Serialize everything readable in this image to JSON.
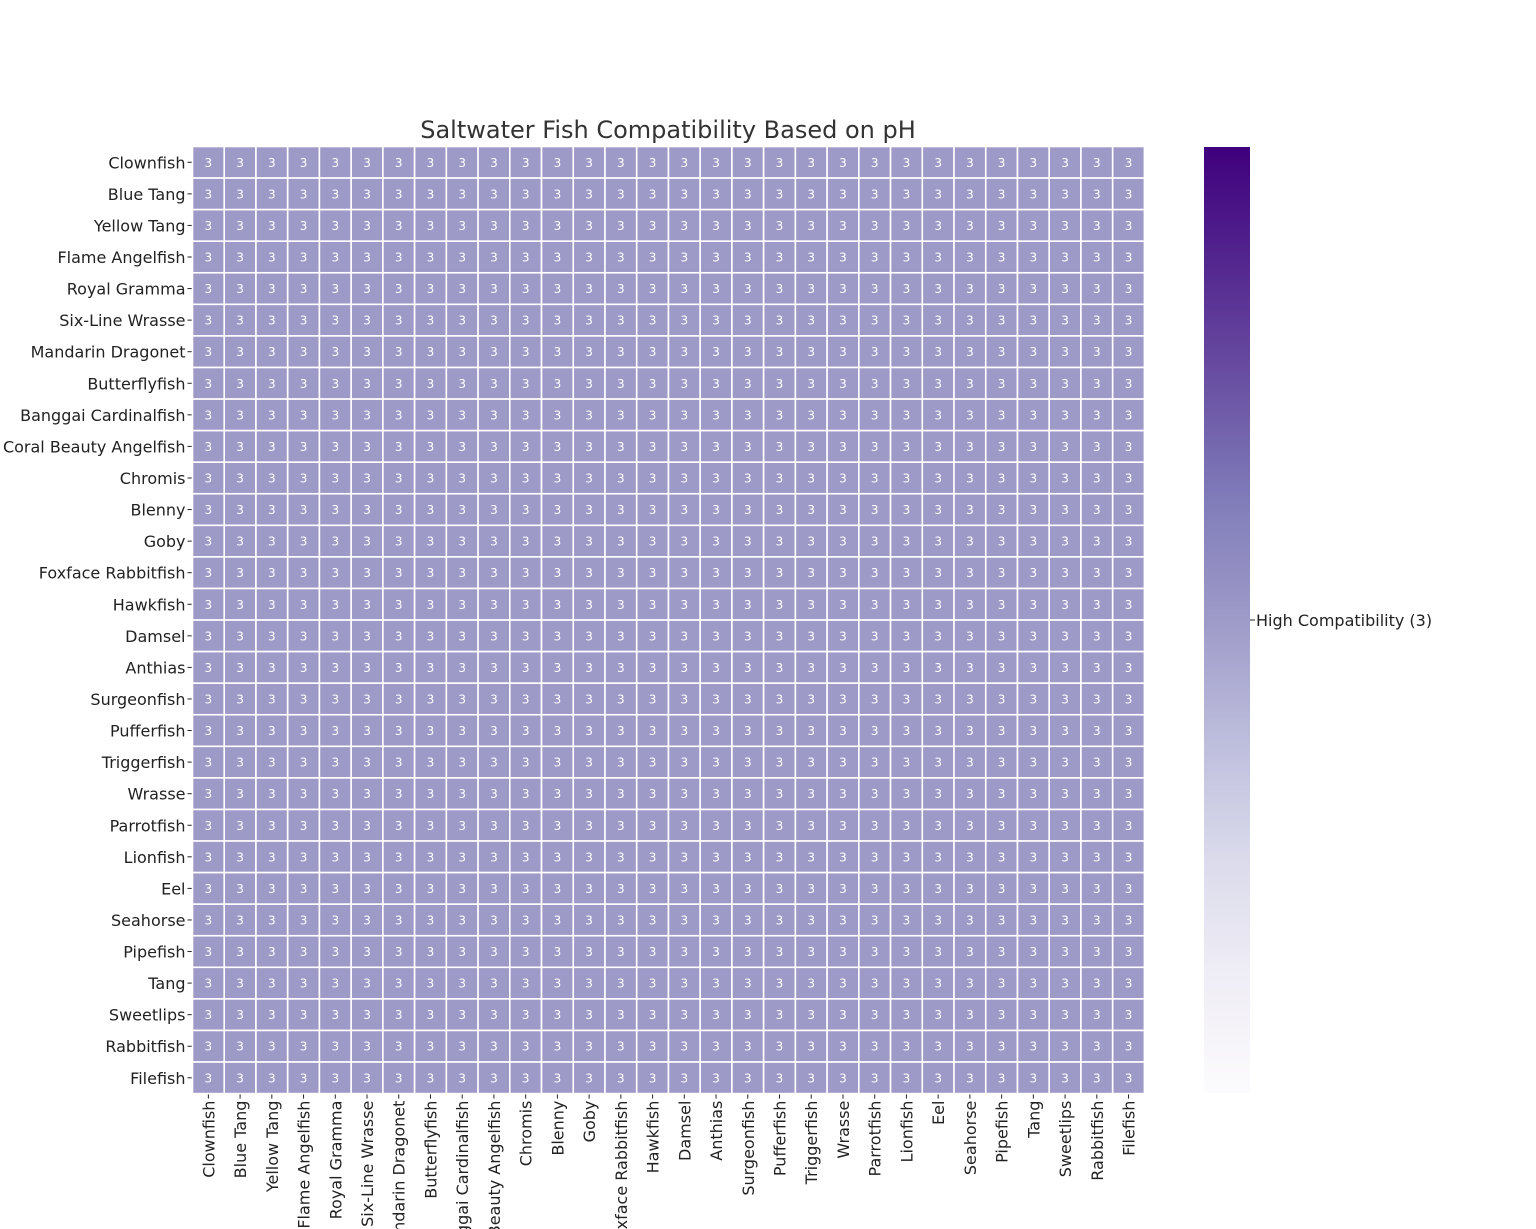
{
  "chart_data": {
    "type": "heatmap",
    "title": "Saltwater Fish Compatibility Based on pH",
    "rows": [
      "Clownfish",
      "Blue Tang",
      "Yellow Tang",
      "Flame Angelfish",
      "Royal Gramma",
      "Six-Line Wrasse",
      "Mandarin Dragonet",
      "Butterflyfish",
      "Banggai Cardinalfish",
      "Coral Beauty Angelfish",
      "Chromis",
      "Blenny",
      "Goby",
      "Foxface Rabbitfish",
      "Hawkfish",
      "Damsel",
      "Anthias",
      "Surgeonfish",
      "Pufferfish",
      "Triggerfish",
      "Wrasse",
      "Parrotfish",
      "Lionfish",
      "Eel",
      "Seahorse",
      "Pipefish",
      "Tang",
      "Sweetlips",
      "Rabbitfish",
      "Filefish"
    ],
    "columns": [
      "Clownfish",
      "Blue Tang",
      "Yellow Tang",
      "Flame Angelfish",
      "Royal Gramma",
      "Six-Line Wrasse",
      "Mandarin Dragonet",
      "Butterflyfish",
      "Banggai Cardinalfish",
      "Coral Beauty Angelfish",
      "Chromis",
      "Blenny",
      "Goby",
      "Foxface Rabbitfish",
      "Hawkfish",
      "Damsel",
      "Anthias",
      "Surgeonfish",
      "Pufferfish",
      "Triggerfish",
      "Wrasse",
      "Parrotfish",
      "Lionfish",
      "Eel",
      "Seahorse",
      "Pipefish",
      "Tang",
      "Sweetlips",
      "Rabbitfish",
      "Filefish"
    ],
    "uniform_value": 3,
    "colorbar": {
      "colormap": "Purples",
      "range": [
        0,
        6
      ],
      "ticks": [
        3
      ],
      "tick_labels": [
        "High Compatibility (3)"
      ]
    },
    "colors": {
      "cell": "#9e9ac8",
      "cell_text": "#ffffff",
      "grid": "#ffffff",
      "colormap_stops": [
        "#fcfbfd",
        "#efedf5",
        "#dadaeb",
        "#bcbddc",
        "#9e9ac8",
        "#807dba",
        "#6a51a3",
        "#54278f",
        "#3f007d"
      ]
    }
  }
}
